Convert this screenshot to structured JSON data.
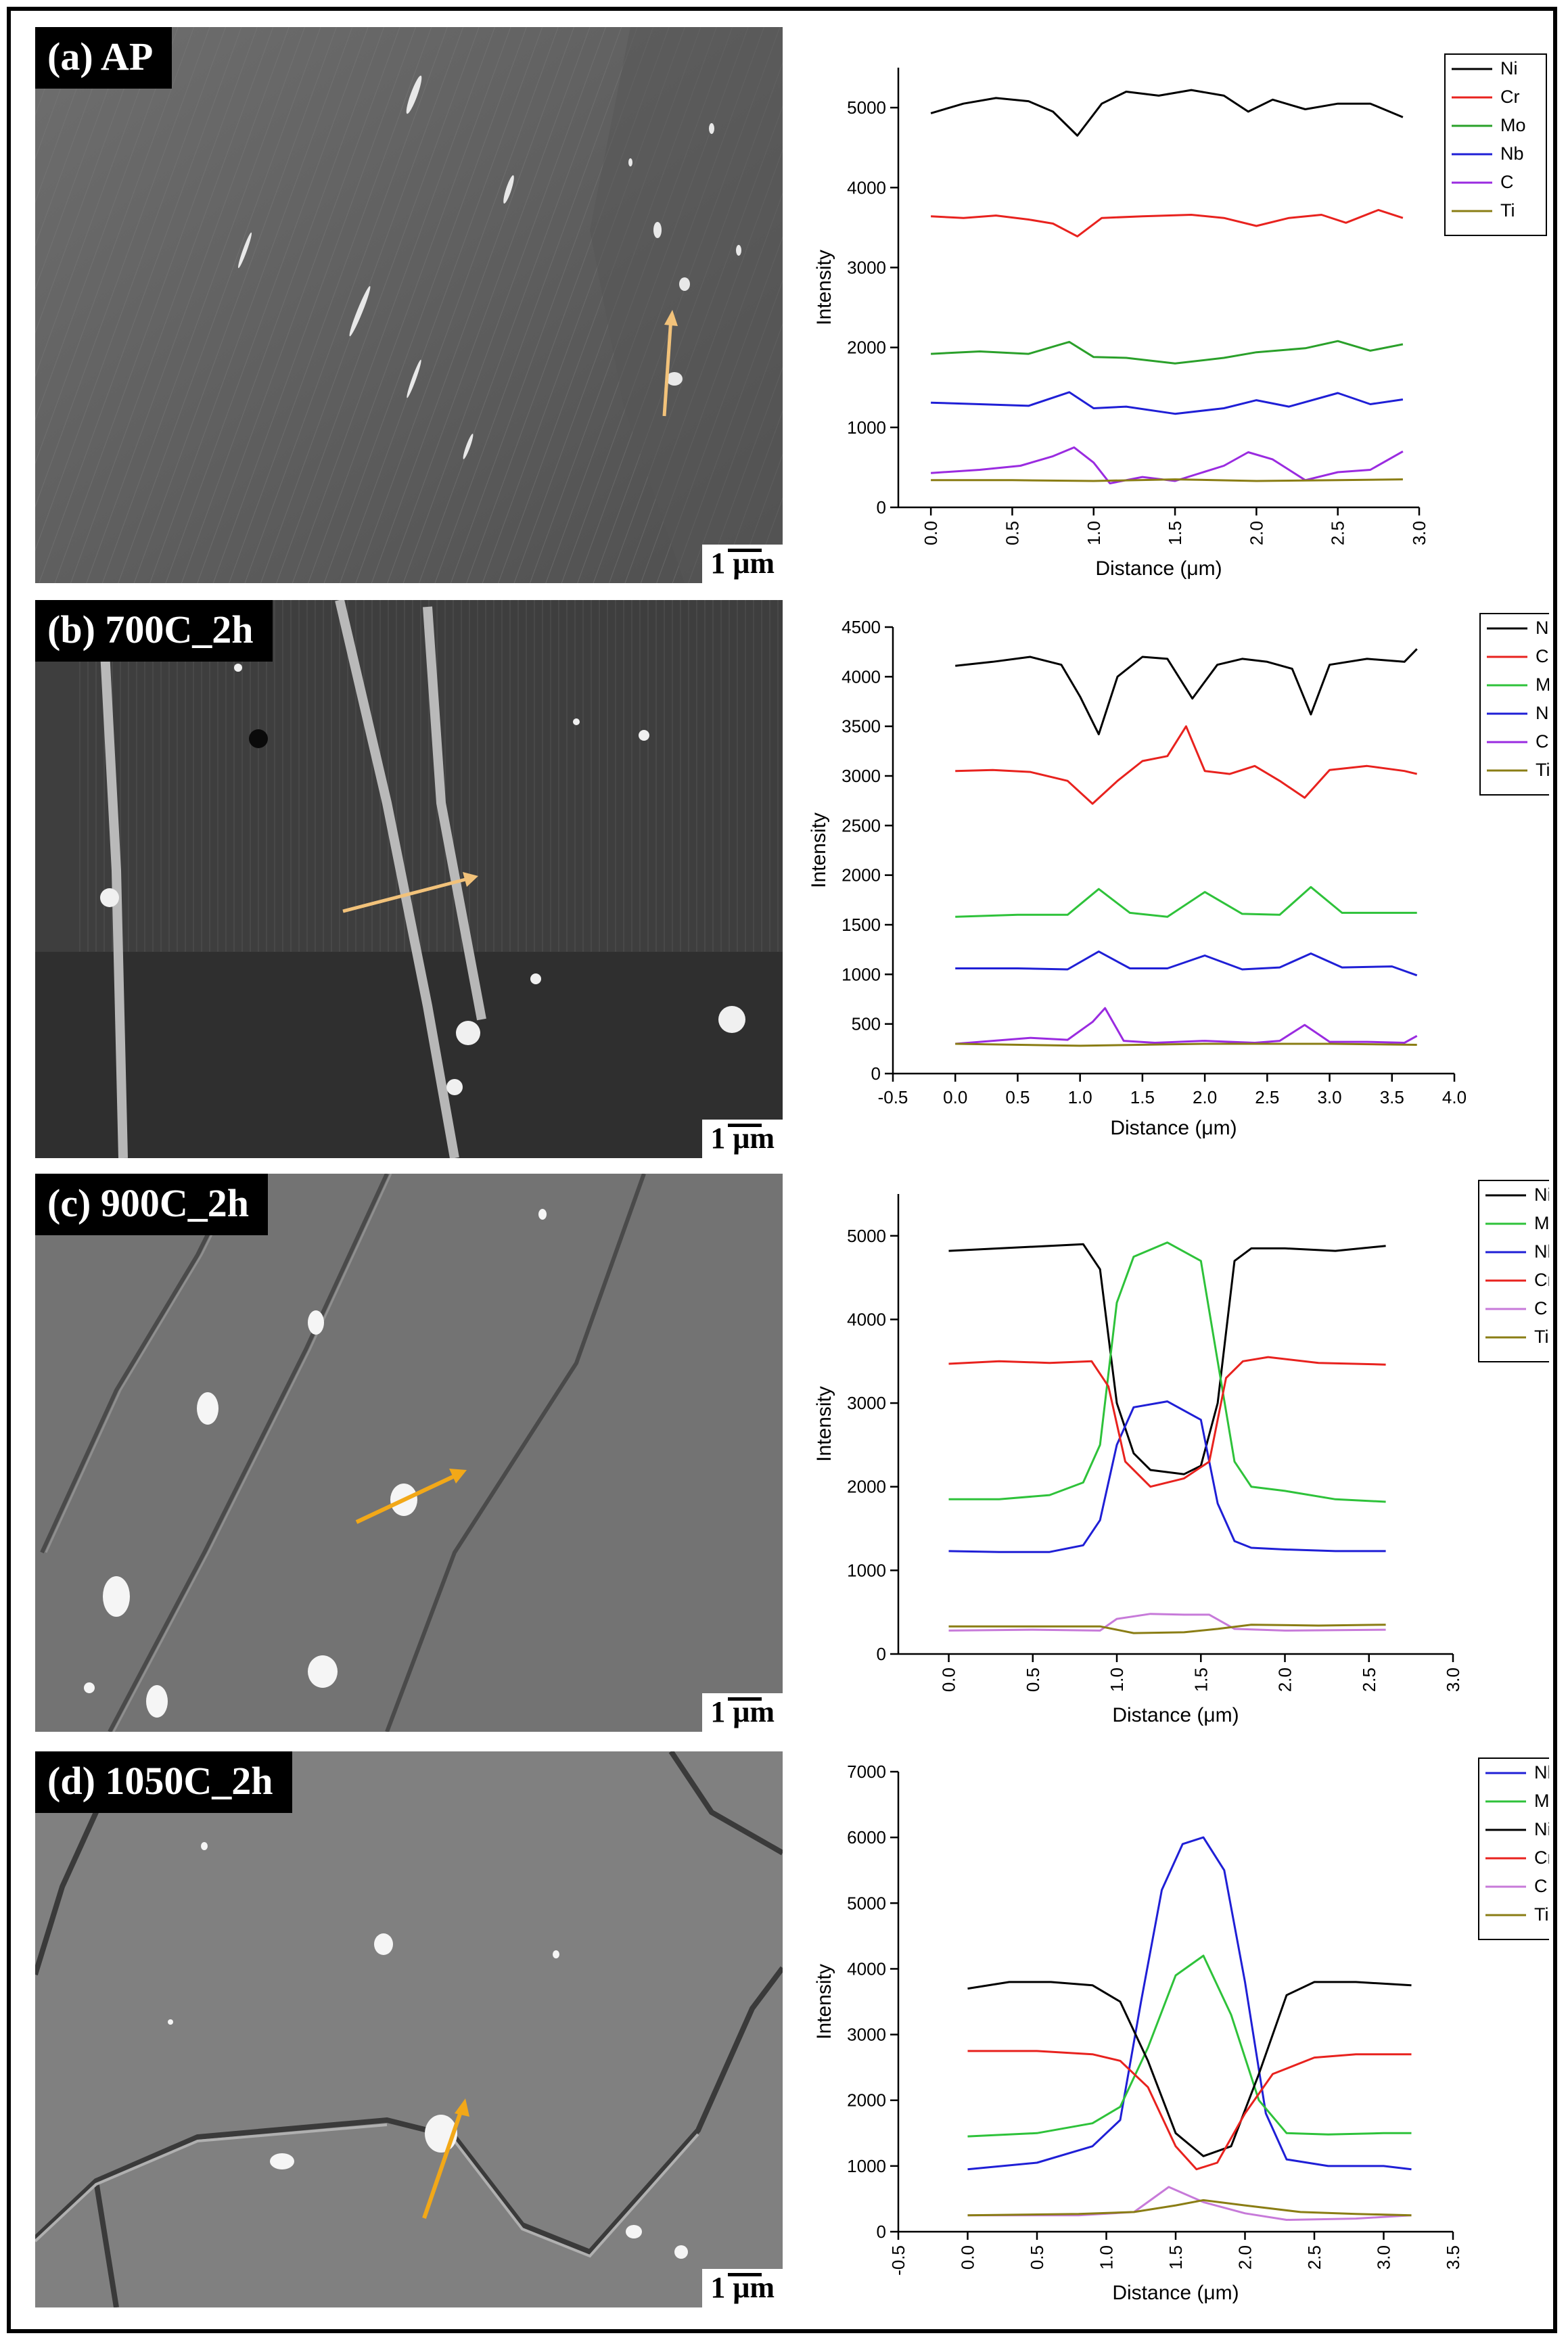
{
  "panels": [
    {
      "label": "(a) AP",
      "scale": "1 μm"
    },
    {
      "label": "(b) 700C_2h",
      "scale": "1 μm"
    },
    {
      "label": "(c) 900C_2h",
      "scale": "1 μm"
    },
    {
      "label": "(d) 1050C_2h",
      "scale": "1 μm"
    }
  ],
  "colors": {
    "Ni": "#000000",
    "Cr": "#e8221e",
    "Mo": "#2aa02a",
    "Mo_light": "#2ec23a",
    "Nb": "#1f1fd6",
    "C": "#9a2be0",
    "C_light": "#c77ad9",
    "Ti": "#8a7d14"
  },
  "chart_data": [
    {
      "type": "line",
      "xlabel": "Distance (μm)",
      "ylabel": "Intensity",
      "xlim": [
        -0.2,
        3.0
      ],
      "ylim": [
        0,
        5500
      ],
      "xticks": [
        "0.0",
        "0.5",
        "1.0",
        "1.5",
        "2.0",
        "2.5",
        "3.0"
      ],
      "yticks": [
        "0",
        "1000",
        "2000",
        "3000",
        "4000",
        "5000"
      ],
      "xtick_rotated": true,
      "legend": [
        "Ni",
        "Cr",
        "Mo",
        "Nb",
        "C",
        "Ti"
      ],
      "series": [
        {
          "name": "Ni",
          "color": "#000000",
          "x": [
            0,
            0.2,
            0.4,
            0.6,
            0.75,
            0.9,
            1.05,
            1.2,
            1.4,
            1.6,
            1.8,
            1.95,
            2.1,
            2.3,
            2.5,
            2.7,
            2.9
          ],
          "y": [
            4930,
            5050,
            5120,
            5080,
            4950,
            4650,
            5050,
            5200,
            5150,
            5220,
            5150,
            4950,
            5100,
            4980,
            5050,
            5050,
            4880
          ]
        },
        {
          "name": "Cr",
          "color": "#e8221e",
          "x": [
            0,
            0.2,
            0.4,
            0.6,
            0.75,
            0.9,
            1.05,
            1.3,
            1.6,
            1.8,
            2.0,
            2.2,
            2.4,
            2.55,
            2.75,
            2.9
          ],
          "y": [
            3640,
            3620,
            3650,
            3600,
            3550,
            3390,
            3620,
            3640,
            3660,
            3620,
            3520,
            3620,
            3660,
            3560,
            3720,
            3620
          ]
        },
        {
          "name": "Mo",
          "color": "#2aa02a",
          "x": [
            0,
            0.3,
            0.6,
            0.85,
            1.0,
            1.2,
            1.5,
            1.8,
            2.0,
            2.3,
            2.5,
            2.7,
            2.9
          ],
          "y": [
            1920,
            1950,
            1920,
            2070,
            1880,
            1870,
            1800,
            1870,
            1940,
            1990,
            2080,
            1960,
            2040
          ]
        },
        {
          "name": "Nb",
          "color": "#1f1fd6",
          "x": [
            0,
            0.3,
            0.6,
            0.85,
            1.0,
            1.2,
            1.5,
            1.8,
            2.0,
            2.2,
            2.5,
            2.7,
            2.9
          ],
          "y": [
            1310,
            1290,
            1270,
            1440,
            1240,
            1260,
            1170,
            1240,
            1340,
            1260,
            1430,
            1290,
            1350
          ]
        },
        {
          "name": "C",
          "color": "#9a2be0",
          "x": [
            0,
            0.3,
            0.55,
            0.75,
            0.88,
            1.0,
            1.1,
            1.3,
            1.5,
            1.8,
            1.95,
            2.1,
            2.3,
            2.5,
            2.7,
            2.9
          ],
          "y": [
            430,
            470,
            520,
            640,
            750,
            560,
            300,
            380,
            330,
            520,
            690,
            600,
            340,
            440,
            470,
            700
          ]
        },
        {
          "name": "Ti",
          "color": "#8a7d14",
          "x": [
            0,
            0.5,
            1.0,
            1.5,
            2.0,
            2.5,
            2.9
          ],
          "y": [
            340,
            340,
            330,
            350,
            330,
            340,
            350
          ]
        }
      ]
    },
    {
      "type": "line",
      "xlabel": "Distance (μm)",
      "ylabel": "Intensity",
      "xlim": [
        -0.5,
        4.0
      ],
      "ylim": [
        0,
        4500
      ],
      "xticks": [
        "-0.5",
        "0.0",
        "0.5",
        "1.0",
        "1.5",
        "2.0",
        "2.5",
        "3.0",
        "3.5",
        "4.0"
      ],
      "yticks": [
        "0",
        "500",
        "1000",
        "1500",
        "2000",
        "2500",
        "3000",
        "3500",
        "4000",
        "4500"
      ],
      "xtick_rotated": false,
      "legend": [
        "Ni",
        "Cr",
        "Mo",
        "Nb",
        "C",
        "Ti"
      ],
      "series": [
        {
          "name": "Ni",
          "color": "#000000",
          "x": [
            0,
            0.3,
            0.6,
            0.85,
            1.0,
            1.15,
            1.3,
            1.5,
            1.7,
            1.9,
            2.1,
            2.3,
            2.5,
            2.7,
            2.85,
            3.0,
            3.3,
            3.6,
            3.7
          ],
          "y": [
            4110,
            4150,
            4200,
            4120,
            3800,
            3420,
            4000,
            4200,
            4180,
            3780,
            4120,
            4180,
            4150,
            4080,
            3620,
            4120,
            4180,
            4150,
            4280
          ]
        },
        {
          "name": "Cr",
          "color": "#e8221e",
          "x": [
            0,
            0.3,
            0.6,
            0.9,
            1.1,
            1.3,
            1.5,
            1.7,
            1.85,
            2.0,
            2.2,
            2.4,
            2.6,
            2.8,
            3.0,
            3.3,
            3.6,
            3.7
          ],
          "y": [
            3050,
            3060,
            3040,
            2950,
            2720,
            2950,
            3150,
            3200,
            3500,
            3050,
            3020,
            3100,
            2950,
            2780,
            3060,
            3100,
            3050,
            3020
          ]
        },
        {
          "name": "Mo",
          "color": "#2ec23a",
          "x": [
            0,
            0.5,
            0.9,
            1.15,
            1.4,
            1.7,
            2.0,
            2.3,
            2.6,
            2.85,
            3.1,
            3.5,
            3.7
          ],
          "y": [
            1580,
            1600,
            1600,
            1860,
            1620,
            1580,
            1830,
            1610,
            1600,
            1880,
            1620,
            1620,
            1620
          ]
        },
        {
          "name": "Nb",
          "color": "#1f1fd6",
          "x": [
            0,
            0.5,
            0.9,
            1.15,
            1.4,
            1.7,
            2.0,
            2.3,
            2.6,
            2.85,
            3.1,
            3.5,
            3.7
          ],
          "y": [
            1060,
            1060,
            1050,
            1230,
            1060,
            1060,
            1190,
            1050,
            1070,
            1210,
            1070,
            1080,
            990
          ]
        },
        {
          "name": "C",
          "color": "#9a2be0",
          "x": [
            0,
            0.3,
            0.6,
            0.9,
            1.1,
            1.2,
            1.35,
            1.6,
            2.0,
            2.4,
            2.6,
            2.8,
            3.0,
            3.3,
            3.6,
            3.7
          ],
          "y": [
            300,
            330,
            360,
            340,
            520,
            660,
            330,
            310,
            330,
            310,
            330,
            490,
            320,
            320,
            310,
            380
          ]
        },
        {
          "name": "Ti",
          "color": "#8a7d14",
          "x": [
            0,
            1.0,
            2.0,
            3.0,
            3.7
          ],
          "y": [
            300,
            280,
            300,
            300,
            290
          ]
        }
      ]
    },
    {
      "type": "line",
      "xlabel": "Distance (μm)",
      "ylabel": "Intensity",
      "xlim": [
        -0.3,
        3.0
      ],
      "ylim": [
        0,
        5500
      ],
      "xticks": [
        "0.0",
        "0.5",
        "1.0",
        "1.5",
        "2.0",
        "2.5",
        "3.0"
      ],
      "yticks": [
        "0",
        "1000",
        "2000",
        "3000",
        "4000",
        "5000"
      ],
      "xtick_rotated": true,
      "legend": [
        "Ni",
        "Mo",
        "Nb",
        "Cr",
        "C",
        "Ti"
      ],
      "series": [
        {
          "name": "Ni",
          "color": "#000000",
          "x": [
            0,
            0.3,
            0.6,
            0.8,
            0.9,
            1.0,
            1.1,
            1.2,
            1.4,
            1.5,
            1.6,
            1.7,
            1.8,
            2.0,
            2.3,
            2.6
          ],
          "y": [
            4820,
            4850,
            4880,
            4900,
            4600,
            3000,
            2400,
            2200,
            2150,
            2250,
            3000,
            4700,
            4850,
            4850,
            4820,
            4880
          ]
        },
        {
          "name": "Mo",
          "color": "#2ec23a",
          "x": [
            0,
            0.3,
            0.6,
            0.8,
            0.9,
            1.0,
            1.1,
            1.3,
            1.5,
            1.6,
            1.7,
            1.8,
            2.0,
            2.3,
            2.6
          ],
          "y": [
            1850,
            1850,
            1900,
            2050,
            2500,
            4200,
            4750,
            4920,
            4700,
            3500,
            2300,
            2000,
            1950,
            1850,
            1820
          ]
        },
        {
          "name": "Nb",
          "color": "#1f1fd6",
          "x": [
            0,
            0.3,
            0.6,
            0.8,
            0.9,
            1.0,
            1.1,
            1.3,
            1.5,
            1.6,
            1.7,
            1.8,
            2.0,
            2.3,
            2.6
          ],
          "y": [
            1230,
            1220,
            1220,
            1300,
            1600,
            2500,
            2950,
            3020,
            2800,
            1800,
            1350,
            1270,
            1250,
            1230,
            1230
          ]
        },
        {
          "name": "Cr",
          "color": "#e8221e",
          "x": [
            0,
            0.3,
            0.6,
            0.85,
            0.95,
            1.05,
            1.2,
            1.4,
            1.55,
            1.65,
            1.75,
            1.9,
            2.2,
            2.6
          ],
          "y": [
            3470,
            3500,
            3480,
            3500,
            3200,
            2300,
            2000,
            2100,
            2300,
            3300,
            3500,
            3550,
            3480,
            3460
          ]
        },
        {
          "name": "C",
          "color": "#c77ad9",
          "x": [
            0,
            0.5,
            0.9,
            1.0,
            1.2,
            1.4,
            1.55,
            1.7,
            2.0,
            2.6
          ],
          "y": [
            280,
            290,
            280,
            420,
            480,
            470,
            470,
            300,
            280,
            290
          ]
        },
        {
          "name": "Ti",
          "color": "#8a7d14",
          "x": [
            0,
            0.5,
            0.9,
            1.1,
            1.4,
            1.6,
            1.8,
            2.2,
            2.6
          ],
          "y": [
            330,
            330,
            330,
            250,
            260,
            300,
            350,
            340,
            350
          ]
        }
      ]
    },
    {
      "type": "line",
      "xlabel": "Distance (μm)",
      "ylabel": "Intensity",
      "xlim": [
        -0.5,
        3.5
      ],
      "ylim": [
        0,
        7000
      ],
      "xticks": [
        "-0.5",
        "0.0",
        "0.5",
        "1.0",
        "1.5",
        "2.0",
        "2.5",
        "3.0",
        "3.5"
      ],
      "yticks": [
        "0",
        "1000",
        "2000",
        "3000",
        "4000",
        "5000",
        "6000",
        "7000"
      ],
      "xtick_rotated": true,
      "legend": [
        "Nb",
        "Mo",
        "Ni",
        "Cr",
        "C",
        "Ti"
      ],
      "series": [
        {
          "name": "Nb",
          "color": "#1f1fd6",
          "x": [
            0,
            0.5,
            0.9,
            1.1,
            1.25,
            1.4,
            1.55,
            1.7,
            1.85,
            2.0,
            2.15,
            2.3,
            2.6,
            3.0,
            3.2
          ],
          "y": [
            950,
            1050,
            1300,
            1700,
            3500,
            5200,
            5900,
            6000,
            5500,
            3800,
            1800,
            1100,
            1000,
            1000,
            950
          ]
        },
        {
          "name": "Mo",
          "color": "#2ec23a",
          "x": [
            0,
            0.5,
            0.9,
            1.1,
            1.3,
            1.5,
            1.7,
            1.9,
            2.1,
            2.3,
            2.6,
            3.0,
            3.2
          ],
          "y": [
            1450,
            1500,
            1650,
            1900,
            2800,
            3900,
            4200,
            3300,
            2000,
            1500,
            1480,
            1500,
            1500
          ]
        },
        {
          "name": "Ni",
          "color": "#000000",
          "x": [
            0,
            0.3,
            0.6,
            0.9,
            1.1,
            1.3,
            1.5,
            1.7,
            1.9,
            2.1,
            2.3,
            2.5,
            2.8,
            3.2
          ],
          "y": [
            3700,
            3800,
            3800,
            3750,
            3500,
            2600,
            1500,
            1150,
            1300,
            2400,
            3600,
            3800,
            3800,
            3750
          ]
        },
        {
          "name": "Cr",
          "color": "#e8221e",
          "x": [
            0,
            0.5,
            0.9,
            1.1,
            1.3,
            1.5,
            1.65,
            1.8,
            2.0,
            2.2,
            2.5,
            2.8,
            3.2
          ],
          "y": [
            2750,
            2750,
            2700,
            2600,
            2200,
            1300,
            950,
            1050,
            1800,
            2400,
            2650,
            2700,
            2700
          ]
        },
        {
          "name": "C",
          "color": "#c77ad9",
          "x": [
            0,
            0.8,
            1.2,
            1.45,
            1.7,
            2.0,
            2.3,
            2.8,
            3.2
          ],
          "y": [
            250,
            250,
            300,
            680,
            450,
            280,
            180,
            200,
            250
          ]
        },
        {
          "name": "Ti",
          "color": "#8a7d14",
          "x": [
            0,
            0.8,
            1.2,
            1.5,
            1.7,
            2.0,
            2.4,
            2.8,
            3.2
          ],
          "y": [
            250,
            270,
            300,
            400,
            480,
            400,
            300,
            270,
            250
          ]
        }
      ]
    }
  ]
}
